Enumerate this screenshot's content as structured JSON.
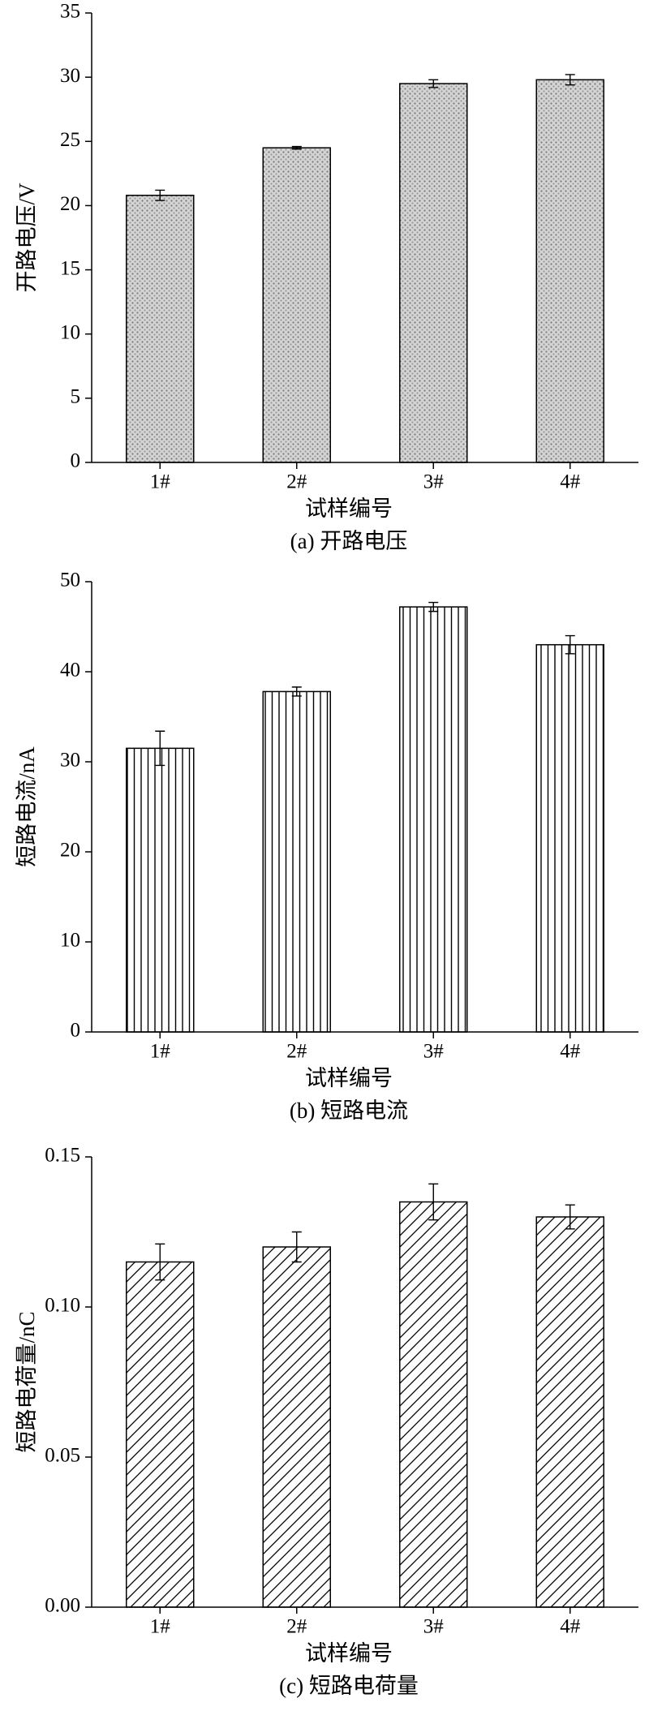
{
  "chart_data": [
    {
      "type": "bar",
      "ylabel": "开路电压/V",
      "xlabel": "试样编号",
      "caption": "(a)  开路电压",
      "categories": [
        "1#",
        "2#",
        "3#",
        "4#"
      ],
      "values": [
        20.8,
        24.5,
        29.5,
        29.8
      ],
      "errors": [
        0.4,
        0.1,
        0.3,
        0.4
      ],
      "ylim": [
        0,
        35
      ],
      "yticks": [
        0,
        5,
        10,
        15,
        20,
        25,
        30,
        35
      ],
      "pattern": "dots"
    },
    {
      "type": "bar",
      "ylabel": "短路电流/nA",
      "xlabel": "试样编号",
      "caption": "(b)  短路电流",
      "categories": [
        "1#",
        "2#",
        "3#",
        "4#"
      ],
      "values": [
        31.5,
        37.8,
        47.2,
        43.0
      ],
      "errors": [
        1.9,
        0.5,
        0.5,
        1.0
      ],
      "ylim": [
        0,
        50
      ],
      "yticks": [
        0,
        10,
        20,
        30,
        40,
        50
      ],
      "pattern": "vertical"
    },
    {
      "type": "bar",
      "ylabel": "短路电荷量/nC",
      "xlabel": "试样编号",
      "caption": "(c)  短路电荷量",
      "categories": [
        "1#",
        "2#",
        "3#",
        "4#"
      ],
      "values": [
        0.115,
        0.12,
        0.135,
        0.13
      ],
      "errors": [
        0.006,
        0.005,
        0.006,
        0.004
      ],
      "ylim": [
        0,
        0.15
      ],
      "yticks": [
        {
          "value": 0,
          "label": "0.00"
        },
        0.05,
        {
          "value": 0.1,
          "label": "0.10"
        },
        0.15
      ],
      "pattern": "diagonal"
    }
  ]
}
